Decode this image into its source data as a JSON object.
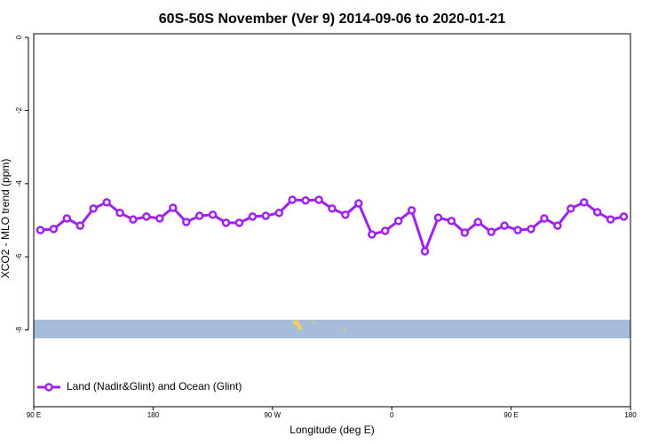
{
  "chart_data": {
    "type": "line",
    "title": "60S-50S November (Ver 9)   2014-09-06 to 2020-01-21",
    "x_label": "Longitude (deg E)",
    "y_label": "XCO2 - MLO trend (ppm)",
    "xlim": [
      90,
      540
    ],
    "ylim": [
      -10.1,
      0.1
    ],
    "xticks": [
      {
        "value": 90,
        "label": "90 E"
      },
      {
        "value": 180,
        "label": "180"
      },
      {
        "value": 270,
        "label": "90 W"
      },
      {
        "value": 360,
        "label": "0"
      },
      {
        "value": 450,
        "label": "90 E"
      },
      {
        "value": 540,
        "label": "180"
      }
    ],
    "yticks": [
      0,
      -2,
      -4,
      -6,
      -8
    ],
    "legend_position": "bottom-left",
    "x": [
      95,
      105,
      115,
      125,
      135,
      145,
      155,
      165,
      175,
      185,
      195,
      205,
      215,
      225,
      235,
      245,
      255,
      265,
      275,
      285,
      295,
      305,
      315,
      325,
      335,
      345,
      355,
      365,
      375,
      385,
      395,
      405,
      415,
      425,
      435,
      445,
      455,
      465,
      475,
      485,
      495,
      505,
      515,
      525,
      535
    ],
    "series": [
      {
        "name": "Land (Nadir&Glint) and Ocean (Glint)",
        "color": "#a020f0",
        "values": [
          -5.27,
          -5.24,
          -4.95,
          -5.15,
          -4.68,
          -4.51,
          -4.8,
          -4.98,
          -4.9,
          -4.95,
          -4.66,
          -5.05,
          -4.88,
          -4.85,
          -5.07,
          -5.07,
          -4.9,
          -4.88,
          -4.8,
          -4.44,
          -4.46,
          -4.44,
          -4.68,
          -4.85,
          -4.54,
          -5.39,
          -5.29,
          -5.02,
          -4.73,
          -5.85,
          -4.93,
          -5.02,
          -5.34,
          -5.05,
          -5.32,
          -5.15,
          -5.27,
          -5.24,
          -4.95,
          -5.15,
          -4.68,
          -4.51,
          -4.78,
          -4.98,
          -4.9
        ]
      }
    ]
  }
}
